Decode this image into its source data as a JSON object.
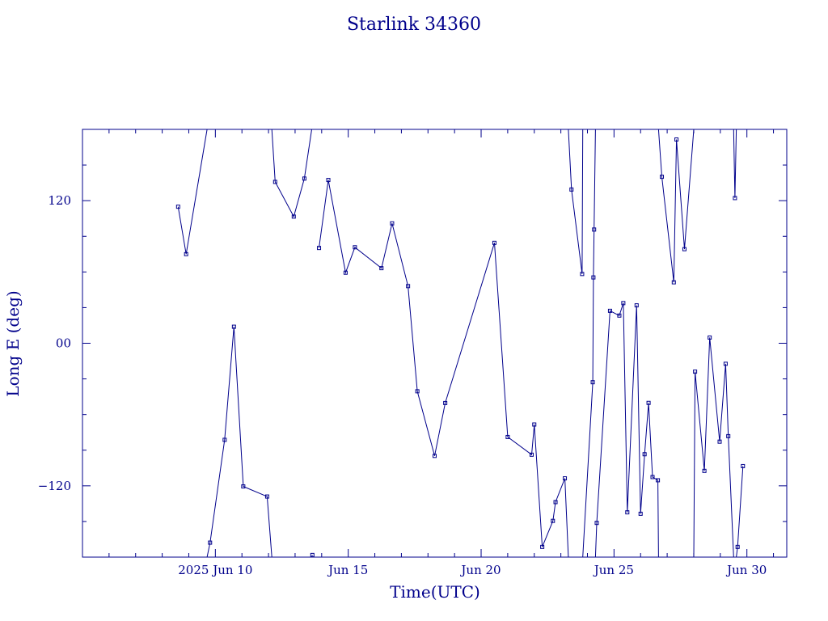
{
  "chart_data": {
    "type": "scatter",
    "title": "Starlink 34360",
    "xlabel": "Time(UTC)",
    "ylabel": "Long E (deg)",
    "x_tick_labels": [
      "2025 Jun 10",
      "Jun 15",
      "Jun 20",
      "Jun 25",
      "Jun 30"
    ],
    "y_tick_labels": [
      "120",
      "00",
      "−120"
    ],
    "xlim": [
      "2025-06-05T00:00",
      "2025-07-01T12:00"
    ],
    "ylim": [
      -180,
      180
    ],
    "y_ticks": [
      120,
      0,
      -120
    ],
    "x_ticks": [
      "2025-06-10",
      "2025-06-15",
      "2025-06-20",
      "2025-06-25",
      "2025-06-30"
    ],
    "color": "#00008b",
    "series": [
      {
        "segments": [
          [
            [
              "2025-06-08T14:24",
              114.9
            ],
            [
              "2025-06-08T21:36",
              75.0
            ],
            [
              "2025-06-09T16:30",
              180
            ]
          ],
          [
            [
              "2025-06-09T16:30",
              -180
            ],
            [
              "2025-06-09T19:12",
              -167.8
            ],
            [
              "2025-06-10T08:24",
              -81.3
            ],
            [
              "2025-06-10T16:48",
              13.9
            ],
            [
              "2025-06-11T01:12",
              -120.5
            ],
            [
              "2025-06-11T22:48",
              -129.0
            ],
            [
              "2025-06-12T03:00",
              -180
            ]
          ],
          [
            [
              "2025-06-12T03:00",
              180
            ],
            [
              "2025-06-12T06:00",
              135.8
            ],
            [
              "2025-06-12T22:48",
              106.6
            ],
            [
              "2025-06-13T08:24",
              138.6
            ],
            [
              "2025-06-13T15:00",
              180
            ]
          ],
          [
            [
              "2025-06-13T15:00",
              -180
            ],
            [
              "2025-06-13T15:36",
              -178.2
            ]
          ],
          [
            [
              "2025-06-13T21:36",
              80.2
            ],
            [
              "2025-06-14T06:00",
              137.4
            ],
            [
              "2025-06-14T21:36",
              59.4
            ],
            [
              "2025-06-15T06:00",
              80.8
            ],
            [
              "2025-06-16T06:00",
              63.2
            ],
            [
              "2025-06-16T15:36",
              100.9
            ],
            [
              "2025-06-17T06:00",
              48.1
            ],
            [
              "2025-06-17T14:24",
              -40.4
            ],
            [
              "2025-06-18T06:00",
              -94.8
            ],
            [
              "2025-06-18T15:36",
              -50.3
            ],
            [
              "2025-06-20T12:00",
              84.5
            ],
            [
              "2025-06-21T00:00",
              -78.9
            ],
            [
              "2025-06-21T21:36",
              -93.8
            ],
            [
              "2025-06-22T00:00",
              -68.4
            ],
            [
              "2025-06-22T07:12",
              -171.4
            ],
            [
              "2025-06-22T16:48",
              -149.5
            ],
            [
              "2025-06-22T19:12",
              -133.7
            ],
            [
              "2025-06-23T03:36",
              -113.7
            ],
            [
              "2025-06-23T06:48",
              -180
            ]
          ],
          [
            [
              "2025-06-23T06:48",
              180
            ],
            [
              "2025-06-23T09:36",
              129.4
            ],
            [
              "2025-06-23T19:12",
              58.3
            ],
            [
              "2025-06-23T19:48",
              180
            ]
          ],
          [
            [
              "2025-06-23T19:48",
              -180
            ],
            [
              "2025-06-24T04:48",
              -32.8
            ],
            [
              "2025-06-24T05:24",
              55.4
            ],
            [
              "2025-06-24T06:00",
              95.7
            ],
            [
              "2025-06-24T07:12",
              180
            ]
          ],
          [
            [
              "2025-06-24T07:12",
              -180
            ],
            [
              "2025-06-24T08:24",
              -151.2
            ],
            [
              "2025-06-24T20:24",
              27.3
            ],
            [
              "2025-06-25T04:48",
              23.3
            ],
            [
              "2025-06-25T08:24",
              33.8
            ],
            [
              "2025-06-25T12:00",
              -142.3
            ],
            [
              "2025-06-25T20:24",
              31.9
            ],
            [
              "2025-06-26T00:00",
              -143.5
            ],
            [
              "2025-06-26T03:36",
              -93.4
            ],
            [
              "2025-06-26T07:12",
              -50.2
            ],
            [
              "2025-06-26T10:48",
              -112.6
            ],
            [
              "2025-06-26T15:36",
              -115.3
            ],
            [
              "2025-06-26T16:12",
              -180
            ]
          ],
          [
            [
              "2025-06-26T16:12",
              180
            ],
            [
              "2025-06-26T19:12",
              140.1
            ],
            [
              "2025-06-27T06:00",
              51.3
            ],
            [
              "2025-06-27T08:24",
              171.5
            ],
            [
              "2025-06-27T15:36",
              79.2
            ],
            [
              "2025-06-28T00:00",
              180
            ]
          ],
          [
            [
              "2025-06-28T00:00",
              -180
            ],
            [
              "2025-06-28T01:12",
              -23.9
            ],
            [
              "2025-06-28T09:36",
              -107.4
            ],
            [
              "2025-06-28T14:24",
              4.8
            ],
            [
              "2025-06-28T23:24",
              -82.8
            ],
            [
              "2025-06-29T04:48",
              -17.3
            ],
            [
              "2025-06-29T07:12",
              -78.2
            ],
            [
              "2025-06-29T12:00",
              -180
            ]
          ],
          [
            [
              "2025-06-29T12:00",
              180
            ],
            [
              "2025-06-29T13:12",
              122.2
            ],
            [
              "2025-06-29T14:24",
              180
            ]
          ],
          [
            [
              "2025-06-29T14:24",
              -180
            ],
            [
              "2025-06-29T15:36",
              -171.4
            ],
            [
              "2025-06-29T20:24",
              -103.4
            ]
          ]
        ]
      }
    ]
  }
}
